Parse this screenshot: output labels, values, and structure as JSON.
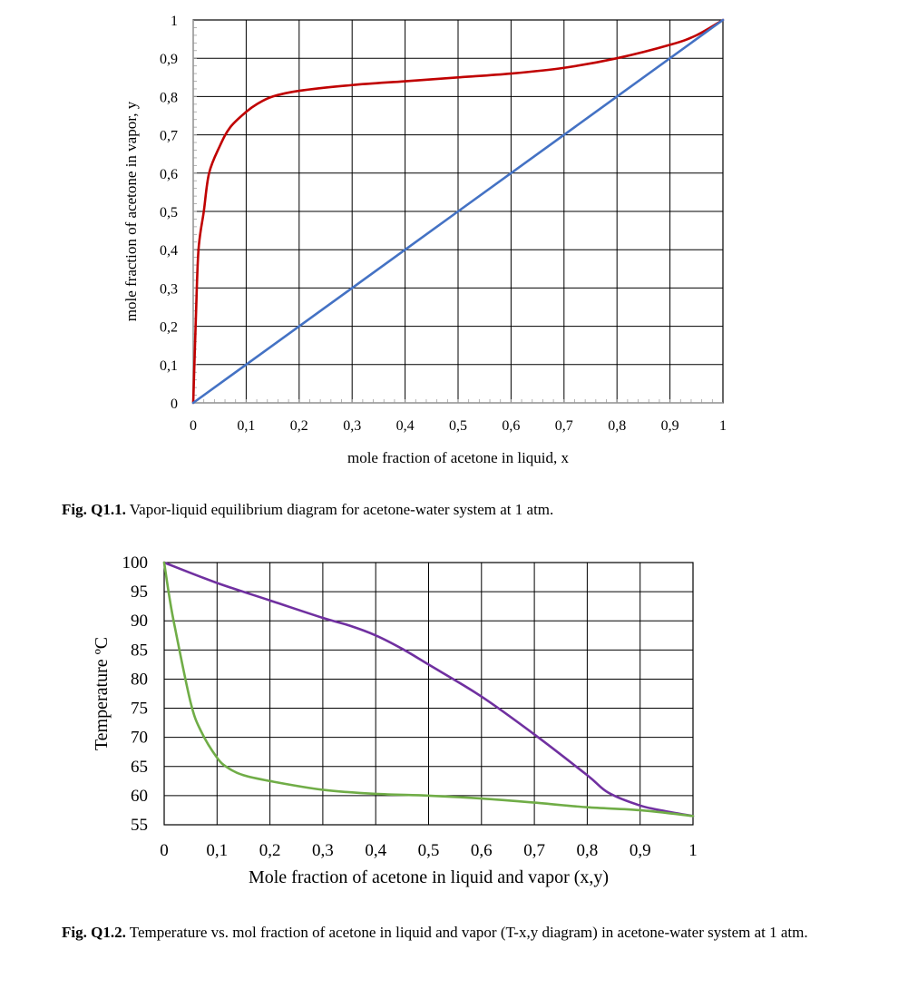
{
  "chart_data": [
    {
      "type": "line",
      "xlabel": "mole fraction of acetone in liquid, x",
      "ylabel": "mole fraction of acetone in vapor, y",
      "xlim": [
        0,
        1
      ],
      "ylim": [
        0,
        1
      ],
      "grid": true,
      "x_ticks": [
        "0",
        "0,1",
        "0,2",
        "0,3",
        "0,4",
        "0,5",
        "0,6",
        "0,7",
        "0,8",
        "0,9",
        "1"
      ],
      "y_ticks": [
        "0",
        "0,1",
        "0,2",
        "0,3",
        "0,4",
        "0,5",
        "0,6",
        "0,7",
        "0,8",
        "0,9",
        "1"
      ],
      "series": [
        {
          "color": "#c00000",
          "x": [
            0,
            0.005,
            0.01,
            0.02,
            0.03,
            0.05,
            0.07,
            0.1,
            0.12,
            0.15,
            0.2,
            0.3,
            0.4,
            0.5,
            0.6,
            0.7,
            0.8,
            0.9,
            0.95,
            1.0
          ],
          "y": [
            0,
            0.22,
            0.4,
            0.5,
            0.6,
            0.67,
            0.72,
            0.76,
            0.78,
            0.8,
            0.815,
            0.83,
            0.84,
            0.85,
            0.86,
            0.875,
            0.9,
            0.935,
            0.96,
            1.0
          ]
        },
        {
          "color": "#4472c4",
          "x": [
            0,
            1
          ],
          "y": [
            0,
            1
          ]
        }
      ]
    },
    {
      "type": "line",
      "xlabel": "Mole fraction of acetone in liquid and vapor (x,y)",
      "ylabel": "Temperature ºC",
      "xlim": [
        0,
        1
      ],
      "ylim": [
        55,
        100
      ],
      "grid": true,
      "x_ticks": [
        "0",
        "0,1",
        "0,2",
        "0,3",
        "0,4",
        "0,5",
        "0,6",
        "0,7",
        "0,8",
        "0,9",
        "1"
      ],
      "y_ticks": [
        "55",
        "60",
        "65",
        "70",
        "75",
        "80",
        "85",
        "90",
        "95",
        "100"
      ],
      "series": [
        {
          "color": "#7030a0",
          "x": [
            0,
            0.1,
            0.2,
            0.3,
            0.35,
            0.4,
            0.45,
            0.5,
            0.6,
            0.7,
            0.8,
            0.84,
            0.9,
            0.95,
            1.0
          ],
          "y": [
            100,
            96.5,
            93.5,
            90.5,
            89.2,
            87.5,
            85.2,
            82.5,
            77,
            70.5,
            63.5,
            60.5,
            58.3,
            57.3,
            56.5
          ]
        },
        {
          "color": "#70ad47",
          "x": [
            0,
            0.01,
            0.02,
            0.05,
            0.07,
            0.1,
            0.12,
            0.15,
            0.2,
            0.3,
            0.4,
            0.5,
            0.6,
            0.7,
            0.8,
            0.9,
            1.0
          ],
          "y": [
            100,
            94,
            89,
            76,
            71,
            66.5,
            64.8,
            63.5,
            62.5,
            61,
            60.3,
            60,
            59.5,
            58.8,
            58,
            57.5,
            56.5
          ]
        }
      ]
    }
  ],
  "captions": {
    "fig1_label": "Fig. Q1.1.",
    "fig1_text": " Vapor-liquid equilibrium diagram for acetone-water system at 1 atm.",
    "fig2_label": "Fig. Q1.2.",
    "fig2_text": " Temperature vs. mol fraction of acetone in liquid and vapor (T-x,y diagram) in acetone-water system at 1 atm."
  }
}
